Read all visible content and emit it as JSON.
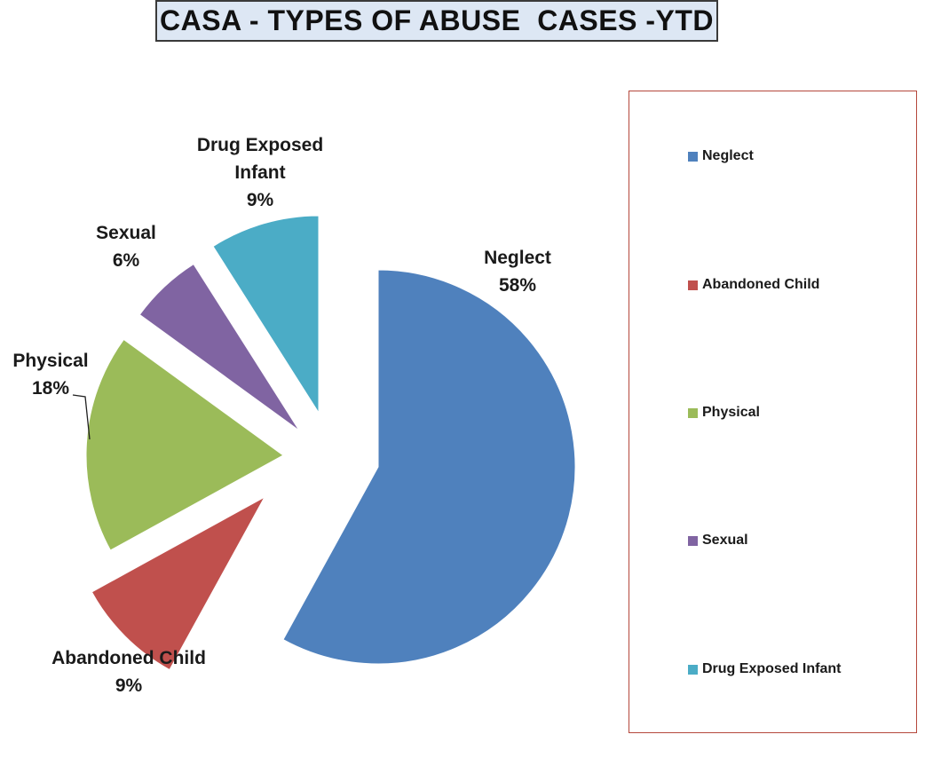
{
  "chart_data": {
    "type": "pie",
    "title": "CASA - TYPES OF ABUSE  CASES -YTD",
    "unit": "%",
    "legend_position": "right",
    "slices": [
      {
        "name": "Neglect",
        "value": 58,
        "label_text": "58%",
        "label_lines": [
          "Neglect",
          "58%"
        ],
        "color": "#4f81bd"
      },
      {
        "name": "Abandoned Child",
        "value": 9,
        "label_text": "9%",
        "label_lines": [
          "Abandoned Child",
          "9%"
        ],
        "color": "#c0504d"
      },
      {
        "name": "Physical",
        "value": 18,
        "label_text": "18%",
        "label_lines": [
          "Physical",
          "18%"
        ],
        "color": "#9bbb59"
      },
      {
        "name": "Sexual",
        "value": 6,
        "label_text": "6%",
        "label_lines": [
          "Sexual",
          "6%"
        ],
        "color": "#8064a2"
      },
      {
        "name": "Drug Exposed Infant",
        "value": 9,
        "label_text": "9%",
        "label_lines": [
          "Drug Exposed",
          "Infant",
          "9%"
        ],
        "color": "#4bacc6"
      }
    ]
  }
}
